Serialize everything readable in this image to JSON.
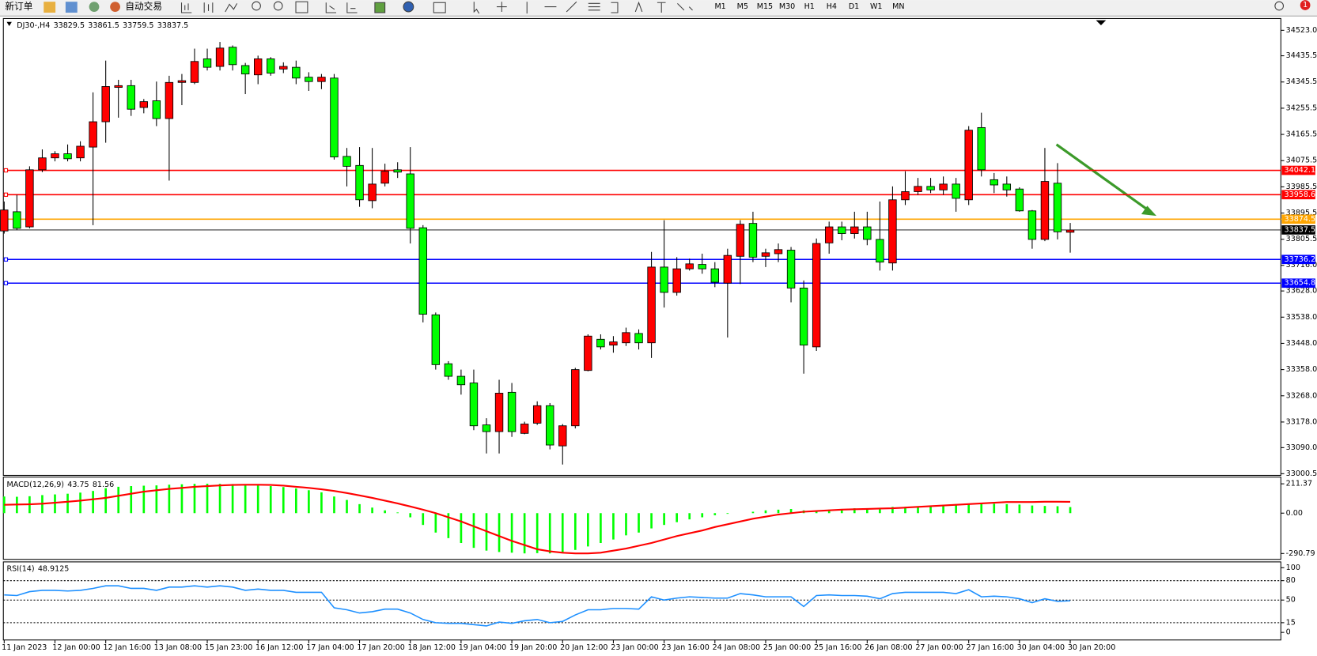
{
  "toolbar": {
    "new_order": "新订单",
    "auto_trading": "自动交易",
    "timeframes": [
      "M1",
      "M5",
      "M15",
      "M30",
      "H1",
      "H4",
      "D1",
      "W1",
      "MN"
    ],
    "badge": "1"
  },
  "chart_data": [
    {
      "type": "candlestick",
      "title": "DJ30-,H4",
      "open": [
        33834,
        33900,
        33848,
        34044,
        34085,
        34099,
        34085,
        34122,
        34209,
        34327,
        34333,
        34258,
        34281,
        34220,
        34344,
        34344,
        34425,
        34399,
        34465,
        34402,
        34370,
        34425,
        34390,
        34396,
        34362,
        34347,
        34359,
        34090,
        34059,
        33938,
        33998,
        34044,
        34030,
        33845,
        33546,
        33378,
        33335,
        33312,
        33168,
        33145,
        33280,
        33139,
        33174,
        33234,
        33096,
        33165,
        33355,
        33462,
        33442,
        33450,
        33482,
        33450,
        33710,
        33623,
        33704,
        33719,
        33704,
        33655,
        33747,
        33860,
        33747,
        33756,
        33768,
        33638,
        33436,
        33793,
        33848,
        33825,
        33848,
        33805,
        33724,
        33941,
        33969,
        33987,
        33975,
        33995,
        33941,
        34189,
        34010,
        33995,
        33978,
        33903,
        33805,
        33998,
        33829.5
      ],
      "high": [
        33935,
        33958,
        34056,
        34114,
        34108,
        34131,
        34142,
        34310,
        34419,
        34353,
        34353,
        34287,
        34347,
        34367,
        34373,
        34460,
        34460,
        34483,
        34471,
        34411,
        34436,
        34431,
        34413,
        34419,
        34379,
        34373,
        34373,
        34119,
        34122,
        34119,
        34065,
        34070,
        34122,
        33854,
        33554,
        33387,
        33358,
        33358,
        33191,
        33323,
        33312,
        33179,
        33249,
        33243,
        33171,
        33364,
        33479,
        33479,
        33473,
        33502,
        33496,
        33762,
        33871,
        33744,
        33739,
        33756,
        33727,
        33773,
        33871,
        33900,
        33773,
        33791,
        33779,
        33664,
        33808,
        33866,
        33866,
        33900,
        33900,
        33935,
        33987,
        34039,
        34016,
        34016,
        34021,
        34016,
        34194,
        34240,
        34033,
        34021,
        33984,
        33906,
        34119,
        34067,
        33861.5
      ],
      "low": [
        33825,
        33837,
        33843,
        34036,
        34073,
        34073,
        34073,
        33854,
        34137,
        34223,
        34229,
        34238,
        34194,
        34007,
        34266,
        34338,
        34385,
        34385,
        34385,
        34304,
        34338,
        34367,
        34376,
        34338,
        34315,
        34321,
        34079,
        33987,
        33917,
        33912,
        33987,
        34016,
        33791,
        33520,
        33358,
        33323,
        33272,
        33150,
        33070,
        33070,
        33127,
        33136,
        33168,
        33084,
        33032,
        33156,
        33352,
        33427,
        33416,
        33439,
        33427,
        33398,
        33571,
        33612,
        33698,
        33687,
        33641,
        33468,
        33652,
        33727,
        33710,
        33727,
        33589,
        33344,
        33422,
        33756,
        33802,
        33808,
        33785,
        33698,
        33698,
        33923,
        33958,
        33964,
        33958,
        33900,
        33923,
        34021,
        33964,
        33952,
        33900,
        33773,
        33799,
        33805,
        33759.5
      ],
      "close": [
        33906,
        33843,
        34044,
        34085,
        34099,
        34082,
        34125,
        34209,
        34330,
        34333,
        34252,
        34278,
        34220,
        34344,
        34350,
        34416,
        34396,
        34462,
        34405,
        34373,
        34425,
        34376,
        34399,
        34359,
        34347,
        34362,
        34088,
        34056,
        33941,
        33995,
        34039,
        34036,
        33843,
        33548,
        33375,
        33335,
        33306,
        33165,
        33145,
        33277,
        33145,
        33171,
        33234,
        33099,
        33165,
        33358,
        33473,
        33436,
        33453,
        33485,
        33450,
        33710,
        33623,
        33704,
        33721,
        33704,
        33658,
        33750,
        33857,
        33744,
        33759,
        33770,
        33638,
        33442,
        33791,
        33848,
        33825,
        33848,
        33805,
        33727,
        33941,
        33969,
        33987,
        33975,
        33995,
        33946,
        34180,
        34044,
        33992,
        33975,
        33903,
        33805,
        34004,
        33831,
        33837.5
      ],
      "up_color": "#ff0000",
      "down_color": "#00ff00",
      "ylim": [
        32994.7,
        34563.4
      ],
      "yticks": [
        {
          "value": 34523,
          "label": "34523.0"
        },
        34435.5,
        34345.5,
        34255.5,
        34165.5,
        34075.5,
        33985.5,
        33895.5,
        33805.5,
        {
          "value": 33716,
          "label": "33716.0"
        },
        {
          "value": 33628,
          "label": "33628.0"
        },
        {
          "value": 33538,
          "label": "33538.0"
        },
        {
          "value": 33448,
          "label": "33448.0"
        },
        {
          "value": 33358,
          "label": "33358.0"
        },
        {
          "value": 33268,
          "label": "33268.0"
        },
        {
          "value": 33178,
          "label": "33178.0"
        },
        {
          "value": 33090,
          "label": "33090.0"
        },
        33000.5
      ],
      "levels": [
        {
          "value": 34042.1,
          "color": "#ff0000"
        },
        {
          "value": 33958.6,
          "color": "#ff0000"
        },
        {
          "value": 33874.5,
          "color": "#ffa500"
        },
        {
          "value": 33736.2,
          "color": "#0000ff"
        },
        {
          "value": 33654.8,
          "color": "#0000ff"
        }
      ],
      "x_labels": [
        "11 Jan 2023",
        "12 Jan 00:00",
        "12 Jan 16:00",
        "13 Jan 08:00",
        "15 Jan 23:00",
        "16 Jan 12:00",
        "17 Jan 04:00",
        "17 Jan 20:00",
        "18 Jan 12:00",
        "19 Jan 04:00",
        "19 Jan 20:00",
        "20 Jan 12:00",
        "23 Jan 00:00",
        "23 Jan 16:00",
        "24 Jan 08:00",
        "25 Jan 00:00",
        "25 Jan 16:00",
        "26 Jan 08:00",
        "27 Jan 00:00",
        "27 Jan 16:00",
        "30 Jan 04:00",
        "30 Jan 20:00"
      ]
    },
    {
      "type": "macd",
      "title": "MACD(12,26,9)",
      "macd": {
        "color": "#00ff00",
        "values": [
          120,
          118,
          122,
          130,
          135,
          140,
          148,
          160,
          180,
          190,
          195,
          198,
          200,
          205,
          208,
          211,
          212,
          211,
          210,
          206,
          200,
          195,
          188,
          178,
          165,
          150,
          120,
          95,
          65,
          40,
          20,
          5,
          -30,
          -85,
          -140,
          -180,
          -215,
          -250,
          -270,
          -280,
          -285,
          -290,
          -288,
          -290,
          -285,
          -265,
          -240,
          -215,
          -190,
          -160,
          -140,
          -110,
          -85,
          -65,
          -45,
          -30,
          -15,
          -5,
          0,
          10,
          20,
          25,
          30,
          20,
          15,
          25,
          30,
          35,
          35,
          38,
          45,
          45,
          50,
          55,
          60,
          65,
          70,
          72,
          68,
          65,
          62,
          55,
          52,
          50,
          43.75
        ]
      },
      "signal": {
        "color": "#ff0000",
        "values": [
          60,
          62,
          64,
          68,
          75,
          82,
          90,
          100,
          110,
          125,
          140,
          155,
          165,
          175,
          182,
          190,
          195,
          200,
          203,
          205,
          205,
          203,
          198,
          190,
          182,
          172,
          160,
          145,
          128,
          110,
          90,
          70,
          48,
          25,
          0,
          -30,
          -60,
          -95,
          -130,
          -165,
          -200,
          -230,
          -260,
          -275,
          -285,
          -290,
          -290,
          -285,
          -270,
          -255,
          -235,
          -215,
          -190,
          -165,
          -145,
          -125,
          -100,
          -80,
          -60,
          -40,
          -25,
          -10,
          0,
          10,
          15,
          20,
          25,
          28,
          30,
          33,
          35,
          40,
          45,
          50,
          55,
          60,
          65,
          70,
          75,
          80,
          80,
          80,
          82,
          82,
          81.56
        ]
      },
      "ylim": [
        -333,
        260
      ],
      "yticks": [
        211.37,
        {
          "value": 0,
          "label": "0.00"
        },
        -290.79
      ]
    },
    {
      "type": "rsi",
      "title": "RSI(14)",
      "color": "#1e90ff",
      "values": [
        58,
        57,
        63,
        65,
        65,
        64,
        65,
        68,
        72,
        72,
        68,
        68,
        65,
        70,
        70,
        72,
        70,
        72,
        70,
        65,
        67,
        65,
        65,
        62,
        62,
        62,
        38,
        35,
        30,
        32,
        36,
        36,
        30,
        20,
        15,
        14,
        14,
        12,
        10,
        16,
        14,
        18,
        20,
        15,
        17,
        27,
        35,
        35,
        37,
        37,
        36,
        55,
        50,
        53,
        55,
        54,
        53,
        53,
        60,
        58,
        55,
        55,
        55,
        40,
        57,
        58,
        57,
        57,
        56,
        52,
        60,
        62,
        62,
        62,
        62,
        60,
        66,
        55,
        56,
        55,
        52,
        46,
        52,
        48,
        48.9125
      ],
      "ylim": [
        -11.7,
        109
      ],
      "yticks": [
        100,
        80,
        50,
        15,
        0
      ]
    }
  ]
}
